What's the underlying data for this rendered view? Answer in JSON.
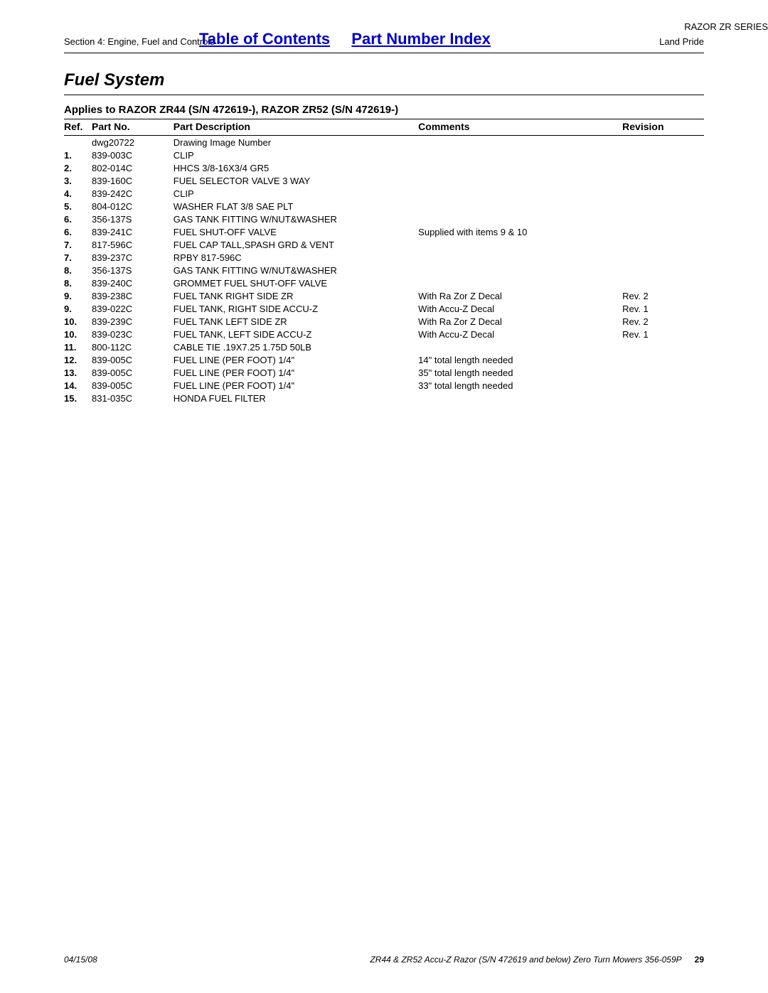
{
  "header": {
    "section_label": "Section 4: Engine, Fuel and Controls",
    "toc_link": "Table of Contents",
    "pni_link": "Part Number Index",
    "brand": "Land Pride",
    "series": "RAZOR ZR SERIES"
  },
  "title": "Fuel System",
  "applies": "Applies to RAZOR ZR44 (S/N 472619-), RAZOR ZR52 (S/N 472619-)",
  "columns": {
    "ref": "Ref.",
    "partno": "Part No.",
    "desc": "Part Description",
    "comments": "Comments",
    "revision": "Revision"
  },
  "rows": [
    {
      "ref": "",
      "partno": "dwg20722",
      "desc": "Drawing Image Number",
      "comments": "",
      "rev": ""
    },
    {
      "ref": "1.",
      "partno": "839-003C",
      "desc": "CLIP",
      "comments": "",
      "rev": ""
    },
    {
      "ref": "2.",
      "partno": "802-014C",
      "desc": "HHCS 3/8-16X3/4 GR5",
      "comments": "",
      "rev": ""
    },
    {
      "ref": "3.",
      "partno": "839-160C",
      "desc": "FUEL SELECTOR VALVE 3 WAY",
      "comments": "",
      "rev": ""
    },
    {
      "ref": "4.",
      "partno": "839-242C",
      "desc": "CLIP",
      "comments": "",
      "rev": ""
    },
    {
      "ref": "5.",
      "partno": "804-012C",
      "desc": "WASHER FLAT 3/8 SAE PLT",
      "comments": "",
      "rev": ""
    },
    {
      "ref": "6.",
      "partno": "356-137S",
      "desc": "GAS TANK FITTING W/NUT&WASHER",
      "comments": "",
      "rev": ""
    },
    {
      "ref": "6.",
      "partno": "839-241C",
      "desc": "FUEL SHUT-OFF VALVE",
      "comments": "Supplied with items 9 & 10",
      "rev": ""
    },
    {
      "ref": "7.",
      "partno": "817-596C",
      "desc": "FUEL CAP TALL,SPASH GRD & VENT",
      "comments": "",
      "rev": ""
    },
    {
      "ref": "7.",
      "partno": "839-237C",
      "desc": "RPBY 817-596C",
      "comments": "",
      "rev": ""
    },
    {
      "ref": "8.",
      "partno": "356-137S",
      "desc": "GAS TANK FITTING W/NUT&WASHER",
      "comments": "",
      "rev": ""
    },
    {
      "ref": "8.",
      "partno": "839-240C",
      "desc": "GROMMET FUEL SHUT-OFF VALVE",
      "comments": "",
      "rev": ""
    },
    {
      "ref": "9.",
      "partno": "839-238C",
      "desc": "FUEL TANK RIGHT SIDE ZR",
      "comments": "With Ra Zor Z Decal",
      "rev": "Rev. 2"
    },
    {
      "ref": "9.",
      "partno": "839-022C",
      "desc": "FUEL TANK, RIGHT SIDE ACCU-Z",
      "comments": "With Accu-Z Decal",
      "rev": "Rev. 1"
    },
    {
      "ref": "10.",
      "partno": "839-239C",
      "desc": "FUEL TANK LEFT SIDE ZR",
      "comments": "With Ra Zor Z Decal",
      "rev": "Rev. 2"
    },
    {
      "ref": "10.",
      "partno": "839-023C",
      "desc": "FUEL TANK, LEFT SIDE ACCU-Z",
      "comments": "With Accu-Z Decal",
      "rev": "Rev. 1"
    },
    {
      "ref": "11.",
      "partno": "800-112C",
      "desc": "CABLE TIE .19X7.25 1.75D 50LB",
      "comments": "",
      "rev": ""
    },
    {
      "ref": "12.",
      "partno": "839-005C",
      "desc": "FUEL LINE (PER FOOT) 1/4\"",
      "comments": "14\" total length needed",
      "rev": ""
    },
    {
      "ref": "13.",
      "partno": "839-005C",
      "desc": "FUEL LINE (PER FOOT) 1/4\"",
      "comments": "35\" total length needed",
      "rev": ""
    },
    {
      "ref": "14.",
      "partno": "839-005C",
      "desc": "FUEL LINE (PER FOOT) 1/4\"",
      "comments": "33\" total length needed",
      "rev": ""
    },
    {
      "ref": "15.",
      "partno": "831-035C",
      "desc": "HONDA FUEL FILTER",
      "comments": "",
      "rev": ""
    }
  ],
  "footer": {
    "date": "04/15/08",
    "doc": "ZR44 & ZR52 Accu-Z Razor (S/N 472619 and below) Zero Turn Mowers 356-059P",
    "page": "29"
  }
}
